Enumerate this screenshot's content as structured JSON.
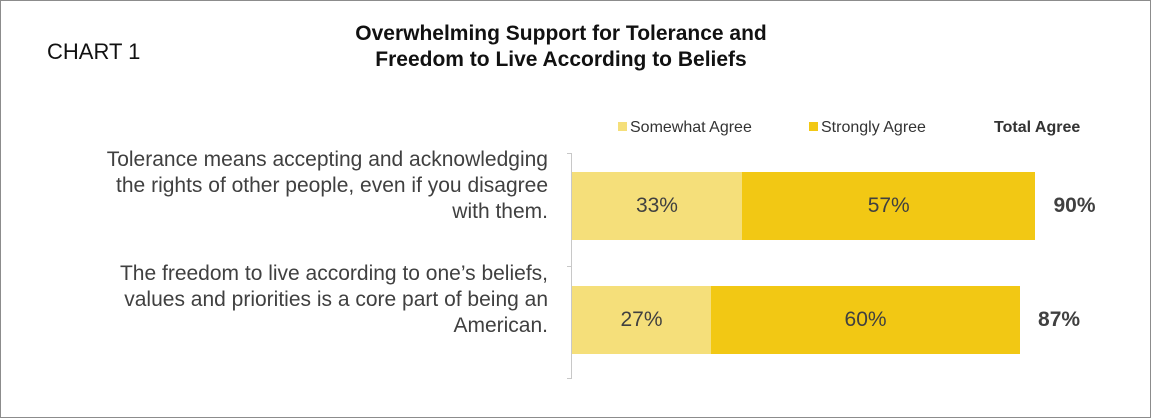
{
  "chart_label": "CHART 1",
  "title_lines": [
    "Overwhelming Support for Tolerance and",
    "Freedom to Live According to Beliefs"
  ],
  "chart_data": {
    "type": "bar",
    "orientation": "horizontal",
    "stacked": true,
    "title": "Overwhelming Support for Tolerance and Freedom to Live According to Beliefs",
    "categories": [
      "Tolerance means accepting and acknowledging the rights of other people, even if you disagree with them.",
      "The freedom to live according to one’s beliefs, values and priorities is a core part of being an American."
    ],
    "category_lines": [
      [
        "Tolerance means accepting and acknowledging",
        "the rights of other people, even if you disagree",
        "with them."
      ],
      [
        "The freedom to live according to one’s beliefs,",
        "values and priorities is a core part of being an",
        "American."
      ]
    ],
    "series": [
      {
        "name": "Somewhat Agree",
        "values": [
          33,
          27
        ],
        "labels": [
          "33%",
          "27%"
        ],
        "color": "#f5df7a"
      },
      {
        "name": "Strongly Agree",
        "values": [
          57,
          60
        ],
        "labels": [
          "57%",
          "60%"
        ],
        "color": "#f2c814"
      }
    ],
    "totals_header": "Total Agree",
    "totals": [
      90,
      87
    ],
    "total_labels": [
      "90%",
      "87%"
    ],
    "xlim": [
      0,
      90
    ],
    "legend_position": "top",
    "grid": false
  }
}
